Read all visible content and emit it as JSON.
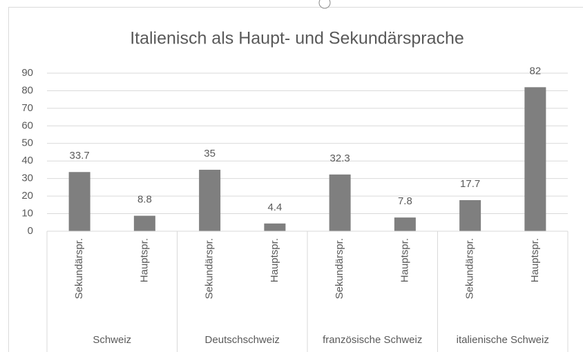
{
  "chart_data": {
    "type": "bar",
    "title": "Italienisch als Haupt- und Sekundärsprache",
    "categories": [
      "Sekundärspr.",
      "Hauptspr.",
      "Sekundärspr.",
      "Hauptspr.",
      "Sekundärspr.",
      "Hauptspr.",
      "Sekundärspr.",
      "Hauptspr."
    ],
    "groups": [
      "Schweiz",
      "Deutschschweiz",
      "französische Schweiz",
      "italienische Schweiz"
    ],
    "values": [
      33.7,
      8.8,
      35,
      4.4,
      32.3,
      7.8,
      17.7,
      82
    ],
    "color": "#7f7f7f",
    "ylim": [
      0,
      90
    ],
    "yticks": [
      0,
      10,
      20,
      30,
      40,
      50,
      60,
      70,
      80,
      90
    ],
    "grid": true,
    "data_labels": true
  }
}
